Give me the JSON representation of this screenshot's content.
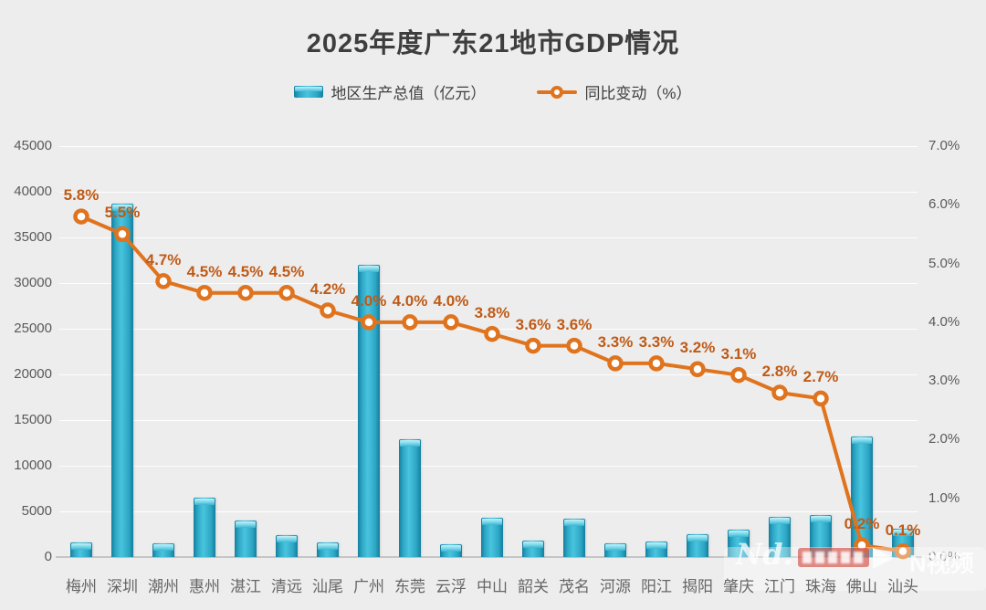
{
  "title": "2025年度广东21地市GDP情况",
  "legend": {
    "bar_label": "地区生产总值（亿元）",
    "line_label": "同比变动（%）"
  },
  "chart_data": {
    "type": "bar",
    "subtype": "combo-bar-line",
    "title": "2025年度广东21地市GDP情况",
    "categories": [
      "梅州",
      "深圳",
      "潮州",
      "惠州",
      "湛江",
      "清远",
      "汕尾",
      "广州",
      "东莞",
      "云浮",
      "中山",
      "韶关",
      "茂名",
      "河源",
      "阳江",
      "揭阳",
      "肇庆",
      "江门",
      "珠海",
      "佛山",
      "汕头"
    ],
    "series": [
      {
        "name": "地区生产总值（亿元）",
        "type": "bar",
        "axis": "left",
        "values": [
          1600,
          38700,
          1500,
          6500,
          4000,
          2400,
          1600,
          32000,
          12900,
          1400,
          4300,
          1800,
          4200,
          1500,
          1700,
          2500,
          3000,
          4400,
          4600,
          13200,
          3100
        ]
      },
      {
        "name": "同比变动（%）",
        "type": "line",
        "axis": "right",
        "values": [
          5.8,
          5.5,
          4.7,
          4.5,
          4.5,
          4.5,
          4.2,
          4.0,
          4.0,
          4.0,
          3.8,
          3.6,
          3.6,
          3.3,
          3.3,
          3.2,
          3.1,
          2.8,
          2.7,
          0.2,
          0.1
        ],
        "labels": [
          "5.8%",
          "5.5%",
          "4.7%",
          "4.5%",
          "4.5%",
          "4.5%",
          "4.2%",
          "4.0%",
          "4.0%",
          "4.0%",
          "3.8%",
          "3.6%",
          "3.6%",
          "3.3%",
          "3.3%",
          "3.2%",
          "3.1%",
          "2.8%",
          "2.7%",
          "0.2%",
          "0.1%"
        ]
      }
    ],
    "left_axis": {
      "min": 0,
      "max": 45000,
      "step": 5000,
      "ticks": [
        "0",
        "5000",
        "10000",
        "15000",
        "20000",
        "25000",
        "30000",
        "35000",
        "40000",
        "45000"
      ]
    },
    "right_axis": {
      "min": 0,
      "max": 7,
      "step": 1,
      "ticks": [
        "0.0%",
        "1.0%",
        "2.0%",
        "3.0%",
        "4.0%",
        "5.0%",
        "6.0%",
        "7.0%"
      ]
    },
    "grid": true,
    "legend_position": "top"
  },
  "watermark": {
    "logo": "Nd.",
    "play_icon": "▶",
    "brand": "N视频"
  },
  "colors": {
    "background": "#ededed",
    "bar_body": "#2ca6c4",
    "bar_edge": "#157e9e",
    "bar_cap": "#c2f2fa",
    "line": "#e0731d",
    "point_label": "#bf5a16",
    "title_text": "#3e3e3e",
    "axis_text": "#595959",
    "city_text": "#666666"
  }
}
